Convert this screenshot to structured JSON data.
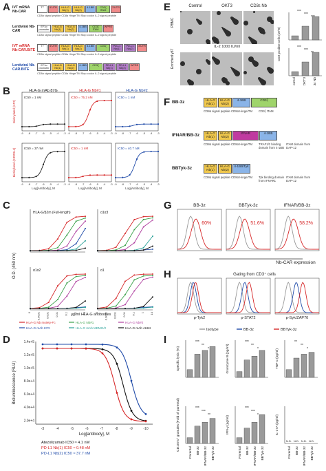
{
  "panel_labels": {
    "A": "A",
    "B": "B",
    "C": "C",
    "D": "D",
    "E": "E",
    "F": "F",
    "G": "G",
    "H": "H",
    "I": "I"
  },
  "panelA": {
    "rows": [
      {
        "label": "IVT mRNA Nb-CAR",
        "label_color": "#222",
        "blocks": [
          "T7",
          "5'UTR",
          "HLA-G Nb(1)",
          "HLA-G Nb(2)",
          "4-1BB",
          "CD3ζ ITAM",
          "3'UTR"
        ]
      },
      {
        "label": "Lentiviral Nb-CAR",
        "label_color": "#222",
        "blocks": [
          "EF1α promoter",
          "HLA-G Nb(1)",
          "HLA-G Nb(2)",
          "4-1BB",
          "CD3ζ ITAM",
          "WPRE"
        ]
      },
      {
        "label": "IVT mRNA Nb-CAR.BiTE",
        "label_color": "#d62728",
        "blocks": [
          "T7",
          "5'UTR",
          "HLA-G Nb(1)",
          "HLA-G Nb(2)",
          "4-1BB",
          "CD3ζ",
          "PD-L1 Nb(1)",
          "PD-L1 Nb(2)",
          "3'UTR"
        ]
      },
      {
        "label": "Lentiviral Nb-CAR.BiTE",
        "label_color": "#1f4aa8",
        "blocks": [
          "EF1α promoter",
          "HLA-G Nb(1)",
          "HLA-G Nb(2)",
          "4-1BB",
          "CD3ζ",
          "PD-L1 Nb(1)",
          "PD-L1 Nb(2)",
          "WPRE"
        ]
      }
    ],
    "sublabels": [
      "CD8α signal peptide",
      "CD8α Hinge/TM",
      "Stop codon",
      "IL-2 signal peptide"
    ]
  },
  "panelB": {
    "titles": [
      "HLA-G mAb 87G",
      "HLA-G Nb#1",
      "HLA-G Nb#2"
    ],
    "title_colors": [
      "#222",
      "#d62728",
      "#1f4aa8"
    ],
    "ic50_top": [
      "IC50 = 1 nM",
      "IC50 = 75.2 nM",
      "IC50 = 1 nM"
    ],
    "ic50_bottom": [
      "IC50 = 37 nM",
      "IC50 = 1 nM",
      "IC50 = 40.7 nM"
    ],
    "ylabel_top": "Biotinylated (ILT2)",
    "ylabel_bottom": "Biotinylated (KIR2DL4)",
    "xlabel": "Log[Antibody], M",
    "xticks": [
      "-9",
      "-8",
      "-7",
      "-6",
      "-5",
      "-4",
      "-3"
    ]
  },
  "panelC": {
    "ylabel": "O.D. (450 nm)",
    "xlabel": "μg/ml HLA-G antibodies",
    "subtitles": [
      "HLA-G/β2m (Full-length)",
      "α1α3",
      "α1α2",
      "α1"
    ],
    "xticks": [
      "0",
      "0.0001",
      "0.001",
      "0.01",
      "0.1",
      "1",
      "10"
    ],
    "legend": [
      {
        "name": "HLA-G Nb moiety-Fc",
        "color": "#d62728"
      },
      {
        "name": "HLA-G Nb#1",
        "color": "#3aa14a"
      },
      {
        "name": "HLA-G Nb#2",
        "color": "#b040a0"
      },
      {
        "name": "HLA-G mAb 87G",
        "color": "#1f4aa8"
      },
      {
        "name": "HLA-G mAb MEMG/2",
        "color": "#2aa198"
      },
      {
        "name": "HLA-G mAb 4H84",
        "color": "#111111"
      }
    ]
  },
  "panelD": {
    "ylabel": "Bioluminescence (RLU)",
    "xlabel": "Log[antibody], M",
    "yticks": [
      "1.4e+5",
      "1.2e+5",
      "1.0e+5",
      "8.0e+4",
      "6.0e+4",
      "4.0e+4",
      "2.0e+4"
    ],
    "xticks": [
      "-3",
      "-4",
      "-5",
      "-6",
      "-7",
      "-8",
      "-9",
      "-10"
    ],
    "legend": [
      {
        "name": "Atezolizumab IC50 ≈ 4.1 nM",
        "color": "#111111"
      },
      {
        "name": "PD-L1 Nb(1) IC50 ≈ 0.48 nM",
        "color": "#d62728"
      },
      {
        "name": "PD-L1 Nb(2) IC50 ≈ 37.7 nM",
        "color": "#1f4aa8"
      }
    ]
  },
  "panelE": {
    "col_headers": [
      "Control",
      "OKT3",
      "CD3ε Nb"
    ],
    "row_labels": [
      "PBMC",
      "Enriched γδT"
    ],
    "caption": "IL-2 1000 IU/ml",
    "chart_ylabel": "CD3 positive cells (10^6)",
    "categories": [
      "Control",
      "OKT3",
      "CD3ε Nb"
    ],
    "sig_top": [
      "***",
      "***",
      "***"
    ],
    "sig_bottom": [
      "***",
      "***",
      "**"
    ]
  },
  "panelF": {
    "constructs": [
      {
        "name": "BB-3z",
        "blocks": [
          "HLA-G Nb(1)",
          "HLA-G Nb(2)",
          "4-1BB",
          "CD3ζ"
        ],
        "notes": [
          "CD8α signal peptide",
          "CD8α Hinge/TM",
          "CD3ζ ITAM"
        ]
      },
      {
        "name": "IFNAR/BB-3z",
        "blocks": [
          "HLA-G Nb(1)",
          "HLA-G Nb(2)",
          "IFNAR",
          "4-1BB"
        ],
        "notes": [
          "CD8α signal peptide",
          "CD8α Hinge/TM",
          "TRAF1/2 binding domain from 4-1BB",
          "ITAM domain from DAP-12"
        ]
      },
      {
        "name": "BBTyk-3z",
        "blocks": [
          "HLA-G Nb(1)",
          "HLA-G Nb(2)",
          "4-1BB/Tyk"
        ],
        "notes": [
          "CD8α signal peptide",
          "CD8α Hinge/TM",
          "Tyk binding domain from IFNAR1",
          "ITAM domain from DAP-12"
        ]
      }
    ]
  },
  "panelG": {
    "titles": [
      "BB-3z",
      "BBTyk-3z",
      "IFNAR/BB-3z"
    ],
    "percents": [
      "60%",
      "51.6%",
      "58.2%"
    ],
    "xlabel": "Nb-CAR expression"
  },
  "panelH": {
    "title": "Gating from CD3⁺ cells",
    "xlabels": [
      "p-Tyk2",
      "p-STAT2",
      "p-Syk/ZAP70"
    ],
    "legend": [
      {
        "name": "Isotype",
        "color": "#999999"
      },
      {
        "name": "BB-3z",
        "color": "#1f4aa8"
      },
      {
        "name": "BBTyk-3z",
        "color": "#d62728"
      }
    ]
  },
  "panelI": {
    "charts": [
      {
        "ylabel": "Specific lysis (%)",
        "sig": [
          "***",
          "**",
          "*"
        ]
      },
      {
        "ylabel": "Granzyme B (pg/ml)",
        "sig": [
          "***",
          "**",
          "*"
        ]
      },
      {
        "ylabel": "TNF-α (pg/ml)",
        "sig": [
          "**",
          "**",
          "*"
        ]
      },
      {
        "ylabel": "CD107a⁺ granules (Fold of parental)",
        "sig": [
          "***",
          "***",
          "**"
        ]
      },
      {
        "ylabel": "IFN-γ (pg/ml)",
        "sig": [
          "***",
          "***",
          "*"
        ]
      },
      {
        "ylabel": "IL-17A (pg/ml)",
        "sig": [
          "N.D.",
          "N.D.",
          "N.D."
        ]
      }
    ],
    "categories": [
      "Parental",
      "BB-3z",
      "IFNAR/BB-3z",
      "BBTyk-3z"
    ],
    "nd": "N.D."
  }
}
